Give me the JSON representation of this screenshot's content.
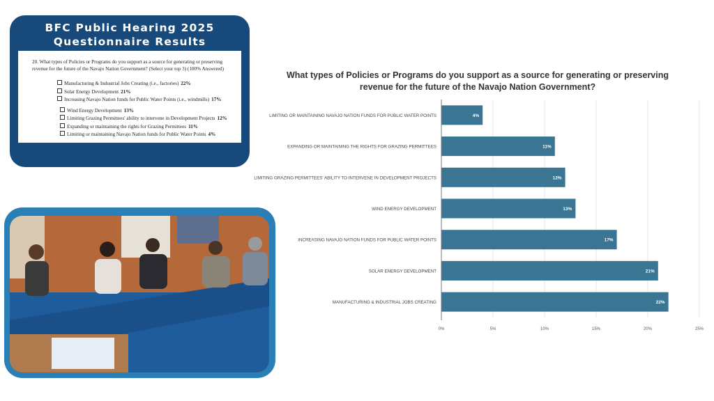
{
  "card": {
    "title_line1": "BFC Public Hearing 2025",
    "title_line2": "Questionnaire Results",
    "question": "20. What types of Policies or Programs do you support as a source for generating or preserving revenue for the future of the Navajo Nation Government? (Select your top 3) (100% Answered)",
    "options": [
      {
        "label": "Manufacturing & Industrial Jobs Creating (i.e., factories)",
        "pct": "22%"
      },
      {
        "label": "Solar Energy Development",
        "pct": "21%"
      },
      {
        "label": "Increasing Navajo Nation funds for Public Water Points (i.e., windmills)",
        "pct": "17%"
      },
      {
        "label": "Wind Energy Development",
        "pct": "13%"
      },
      {
        "label": "Limiting Grazing Permittees' ability to intervene in Development Projects",
        "pct": "12%"
      },
      {
        "label": "Expanding or maintaining the rights for Grazing Permittees",
        "pct": "11%"
      },
      {
        "label": "Limiting or maintaining Navajo Nation funds for Public Water Points",
        "pct": "4%"
      }
    ]
  },
  "colors": {
    "card_bg": "#17497a",
    "photo_frame": "#2a7fb6",
    "bar": "#3a7694"
  },
  "chart_data": {
    "type": "bar",
    "orientation": "horizontal",
    "title": "What types of Policies or Programs do you support as a source for generating or preserving revenue for the future of the Navajo Nation Government?",
    "categories": [
      "LIMITING OR MAINTAINING NAVAJO NATION FUNDS FOR PUBLIC WATER POINTS",
      "EXPANDING OR MAINTAINING THE RIGHTS FOR GRAZING PERMITTEES",
      "LIMITING GRAZING PERMITTEES' ABILITY TO INTERVENE IN DEVELOPMENT PROJECTS",
      "WIND ENERGY DEVELOPMENT",
      "INCREASING NAVAJO NATION FUNDS FOR PUBLIC WATER POINTS",
      "SOLAR ENERGY DEVELOPMENT",
      "MANUFACTURING & INDUSTRIAL JOBS CREATING"
    ],
    "values": [
      4,
      11,
      12,
      13,
      17,
      21,
      22
    ],
    "data_labels": [
      "4%",
      "11%",
      "12%",
      "13%",
      "17%",
      "21%",
      "22%"
    ],
    "xlim": [
      0,
      25
    ],
    "xticks": [
      "0%",
      "5%",
      "10%",
      "15%",
      "20%",
      "25%"
    ],
    "grid": true
  }
}
